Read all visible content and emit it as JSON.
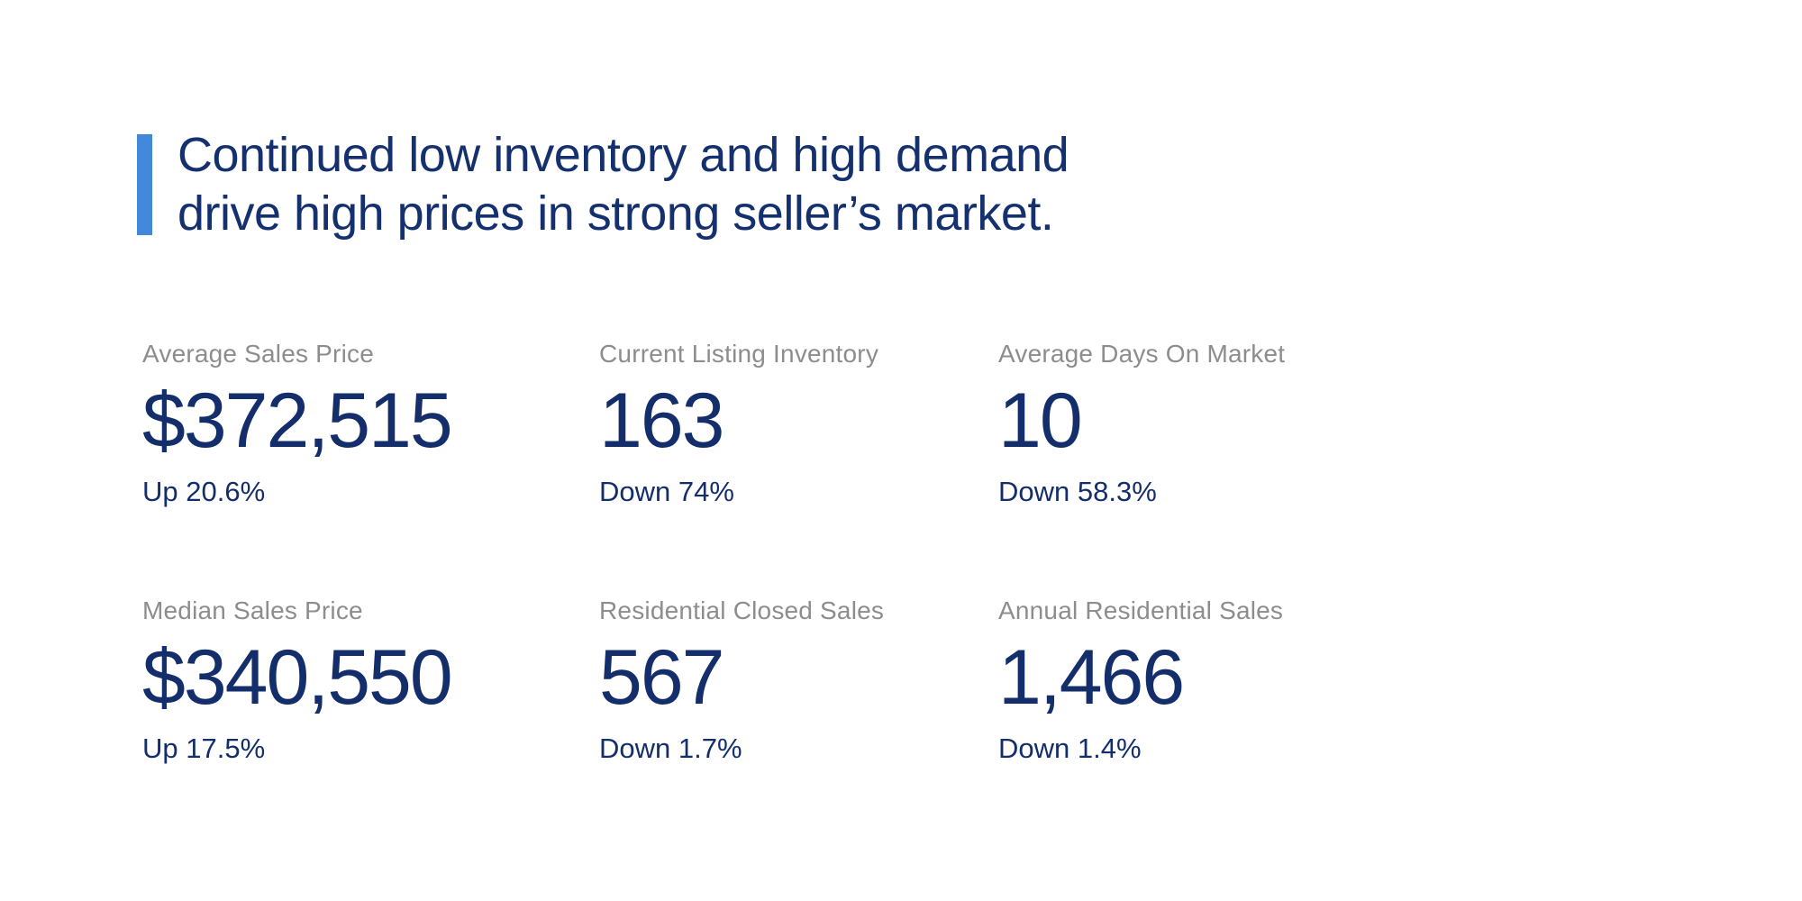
{
  "headline": {
    "line1": "Continued low inventory and high demand",
    "line2": "drive high prices in strong seller’s market."
  },
  "colors": {
    "accent_bar": "#4489d9",
    "navy_text": "#132e6b",
    "label_gray": "#8d8d8d",
    "background": "#ffffff"
  },
  "stats": [
    {
      "label": "Average Sales Price",
      "value": "$372,515",
      "change": "Up 20.6%"
    },
    {
      "label": "Current Listing Inventory",
      "value": "163",
      "change": "Down 74%"
    },
    {
      "label": "Average Days On Market",
      "value": "10",
      "change": "Down 58.3%"
    },
    {
      "label": "Median Sales Price",
      "value": "$340,550",
      "change": "Up 17.5%"
    },
    {
      "label": "Residential Closed Sales",
      "value": "567",
      "change": "Down 1.7%"
    },
    {
      "label": "Annual Residential Sales",
      "value": "1,466",
      "change": "Down 1.4%"
    }
  ]
}
